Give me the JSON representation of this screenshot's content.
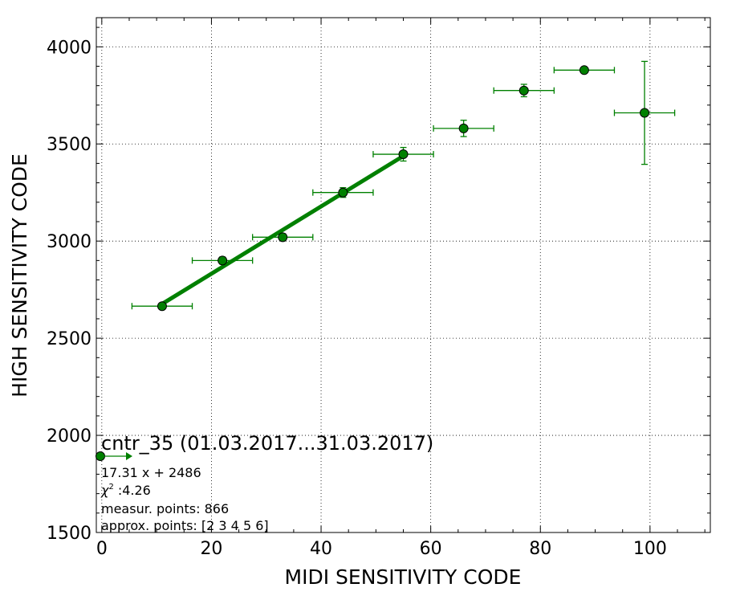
{
  "chart_data": {
    "type": "scatter",
    "xlabel": "MIDI SENSITIVITY CODE",
    "ylabel": "HIGH SENSITIVITY CODE",
    "xlim": [
      -1,
      111
    ],
    "ylim": [
      1500,
      4150
    ],
    "xticks": [
      0,
      20,
      40,
      60,
      80,
      100
    ],
    "yticks": [
      1500,
      2000,
      2500,
      3000,
      3500,
      4000
    ],
    "xtick_labels": [
      "0",
      "20",
      "40",
      "60",
      "80",
      "100"
    ],
    "ytick_labels": [
      "1500",
      "2000",
      "2500",
      "3000",
      "3500",
      "4000"
    ],
    "grid": true,
    "colors": {
      "series": "#008000",
      "marker_edge": "#000000"
    },
    "points": [
      {
        "x": 11,
        "y": 2665,
        "xerr": 5.5,
        "yerr": 12
      },
      {
        "x": 22,
        "y": 2900,
        "xerr": 5.5,
        "yerr": 18
      },
      {
        "x": 33,
        "y": 3020,
        "xerr": 5.5,
        "yerr": 18
      },
      {
        "x": 44,
        "y": 3250,
        "xerr": 5.5,
        "yerr": 25
      },
      {
        "x": 55,
        "y": 3447,
        "xerr": 5.5,
        "yerr": 35
      },
      {
        "x": 66,
        "y": 3580,
        "xerr": 5.5,
        "yerr": 42
      },
      {
        "x": 77,
        "y": 3775,
        "xerr": 5.5,
        "yerr": 32
      },
      {
        "x": 88,
        "y": 3880,
        "xerr": 5.5,
        "yerr": 0
      },
      {
        "x": 99,
        "y": 3660,
        "xerr": 5.5,
        "yerr": 265
      }
    ],
    "fit_line": {
      "slope": 17.31,
      "intercept": 2486,
      "x_range": [
        11,
        55
      ]
    },
    "annotations": {
      "title": "cntr_35 (01.03.2017...31.03.2017)",
      "equation": "17.31 x + 2486",
      "chi_symbol": "χ",
      "chi_exponent": "2",
      "chi_value": ":4.26",
      "measur_points": "measur. points: 866",
      "approx_points": "approx. points: [2 3 4 5 6]"
    }
  }
}
